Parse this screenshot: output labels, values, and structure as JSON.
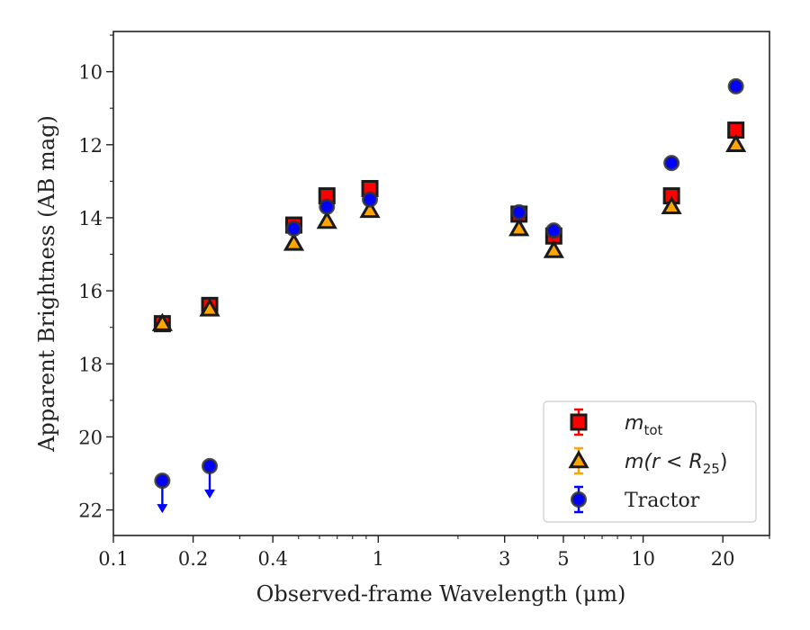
{
  "chart_data": {
    "type": "scatter",
    "xlabel": "Observed-frame Wavelength (μm)",
    "ylabel": "Apparent Brightness (AB mag)",
    "xscale": "log",
    "xlim": [
      0.1,
      30
    ],
    "ylim": [
      22.7,
      8.9
    ],
    "y_inverted": true,
    "x_ticks": [
      0.1,
      0.2,
      0.4,
      1,
      3,
      5,
      10,
      20
    ],
    "x_tick_labels": [
      "0.1",
      "0.2",
      "0.4",
      "1",
      "3",
      "5",
      "10",
      "20"
    ],
    "y_ticks": [
      10,
      12,
      14,
      16,
      18,
      20,
      22
    ],
    "y_tick_labels": [
      "10",
      "12",
      "14",
      "16",
      "18",
      "20",
      "22"
    ],
    "grid": false,
    "legend_position": "lower-right",
    "series": [
      {
        "name": "m_tot",
        "legend_label": "m",
        "legend_sub": "tot",
        "marker": "square",
        "color": "#ff0000",
        "points": [
          {
            "x": 0.153,
            "y": 16.9
          },
          {
            "x": 0.231,
            "y": 16.4
          },
          {
            "x": 0.48,
            "y": 14.2
          },
          {
            "x": 0.64,
            "y": 13.4
          },
          {
            "x": 0.93,
            "y": 13.2
          },
          {
            "x": 3.4,
            "y": 13.9
          },
          {
            "x": 4.6,
            "y": 14.5
          },
          {
            "x": 12.8,
            "y": 13.4
          },
          {
            "x": 22.4,
            "y": 11.6
          }
        ]
      },
      {
        "name": "m(r < R25)",
        "legend_label": "m(r < R",
        "legend_sub": "25",
        "legend_tail": ")",
        "marker": "triangle",
        "color": "#ffa500",
        "points": [
          {
            "x": 0.153,
            "y": 16.9
          },
          {
            "x": 0.231,
            "y": 16.5
          },
          {
            "x": 0.48,
            "y": 14.7
          },
          {
            "x": 0.64,
            "y": 14.1
          },
          {
            "x": 0.93,
            "y": 13.8
          },
          {
            "x": 3.4,
            "y": 14.3
          },
          {
            "x": 4.6,
            "y": 14.9
          },
          {
            "x": 12.8,
            "y": 13.7
          },
          {
            "x": 22.4,
            "y": 12.0
          }
        ]
      },
      {
        "name": "Tractor",
        "legend_label": "Tractor",
        "marker": "circle",
        "color": "#0000ff",
        "points": [
          {
            "x": 0.153,
            "y": 21.2,
            "upper_limit": true
          },
          {
            "x": 0.231,
            "y": 20.8,
            "upper_limit": true
          },
          {
            "x": 0.48,
            "y": 14.3
          },
          {
            "x": 0.64,
            "y": 13.7
          },
          {
            "x": 0.93,
            "y": 13.5
          },
          {
            "x": 3.4,
            "y": 13.85
          },
          {
            "x": 4.6,
            "y": 14.35
          },
          {
            "x": 12.8,
            "y": 12.5
          },
          {
            "x": 22.4,
            "y": 10.4
          }
        ]
      }
    ]
  }
}
